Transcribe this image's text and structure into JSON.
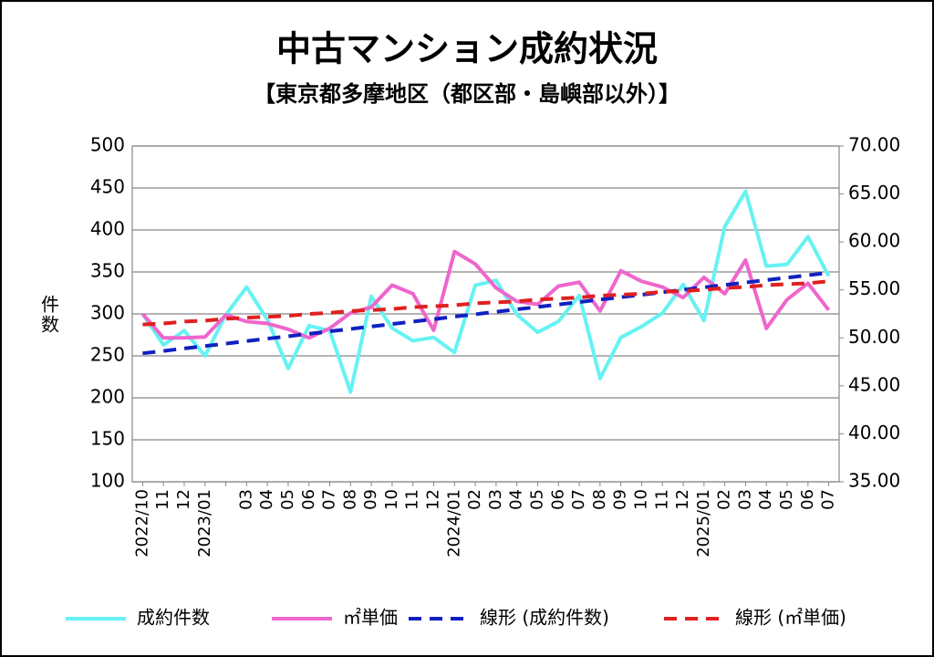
{
  "chart_data": {
    "type": "line",
    "title": "中古マンション成約状況",
    "subtitle": "【東京都多摩地区（都区部・島嶼部以外）】",
    "y_label": "件数",
    "categories": [
      "2022/10",
      "11",
      "12",
      "2023/01",
      null,
      "03",
      "04",
      "05",
      "06",
      "07",
      "08",
      "09",
      "10",
      "11",
      "12",
      "2024/01",
      "02",
      "03",
      "04",
      "05",
      "06",
      "07",
      "08",
      "09",
      "10",
      "11",
      "12",
      "2025/01",
      "02",
      "03",
      "04",
      "05",
      "06",
      "07"
    ],
    "series": [
      {
        "name": "成約件数",
        "color": "#66f2f2",
        "axis": "y",
        "dash": false,
        "values": [
          300,
          263,
          280,
          250,
          299,
          332,
          293,
          235,
          286,
          280,
          207,
          321,
          283,
          268,
          272,
          254,
          334,
          340,
          299,
          278,
          291,
          322,
          223,
          272,
          285,
          301,
          335,
          292,
          404,
          446,
          357,
          359,
          392,
          345
        ]
      },
      {
        "name": "㎡単価",
        "color": "#ee66cc",
        "axis": "y2",
        "dash": false,
        "values": [
          52.5,
          50.0,
          50.0,
          50.1,
          52.4,
          51.7,
          51.5,
          50.9,
          50.0,
          51.0,
          52.6,
          53.2,
          55.5,
          54.6,
          50.8,
          59.0,
          57.7,
          55.2,
          53.8,
          53.5,
          55.4,
          55.8,
          52.8,
          57.0,
          55.9,
          55.3,
          54.2,
          56.3,
          54.6,
          58.1,
          51.0,
          54.0,
          55.7,
          52.9
        ]
      },
      {
        "name": "線形 (成約件数)",
        "color": "#1020c0",
        "axis": "y",
        "dash": true,
        "values": [
          253,
          255.9,
          258.8,
          261.7,
          264.6,
          267.6,
          270.5,
          273.4,
          276.3,
          279.2,
          282.1,
          285,
          287.9,
          290.8,
          293.7,
          296.7,
          299.6,
          302.5,
          305.4,
          308.3,
          311.2,
          314.1,
          317,
          319.9,
          322.8,
          325.8,
          328.7,
          331.6,
          334.5,
          337.4,
          340.3,
          343.2,
          346.1,
          349
        ]
      },
      {
        "name": "線形 (㎡単価)",
        "color": "#e02020",
        "axis": "y2",
        "dash": true,
        "values": [
          51.4,
          51.5,
          51.7,
          51.8,
          52,
          52.1,
          52.2,
          52.3,
          52.5,
          52.6,
          52.8,
          52.9,
          53,
          53.2,
          53.3,
          53.4,
          53.6,
          53.7,
          53.8,
          54,
          54.1,
          54.2,
          54.4,
          54.5,
          54.6,
          54.8,
          54.9,
          55,
          55.2,
          55.3,
          55.5,
          55.6,
          55.7,
          55.9
        ]
      }
    ],
    "ylim": [
      100,
      500
    ],
    "yticks": [
      100,
      150,
      200,
      250,
      300,
      350,
      400,
      450,
      500
    ],
    "y2lim": [
      35,
      70
    ],
    "y2ticks": [
      {
        "value": 35,
        "label": "35.00"
      },
      {
        "value": 40,
        "label": "40.00"
      },
      {
        "value": 45,
        "label": "45.00"
      },
      {
        "value": 50,
        "label": "50.00"
      },
      {
        "value": 55,
        "label": "55.00"
      },
      {
        "value": 60,
        "label": "60.00"
      },
      {
        "value": 65,
        "label": "65.00"
      },
      {
        "value": 70,
        "label": "70.00"
      }
    ],
    "grid": true,
    "legend": "bottom"
  }
}
